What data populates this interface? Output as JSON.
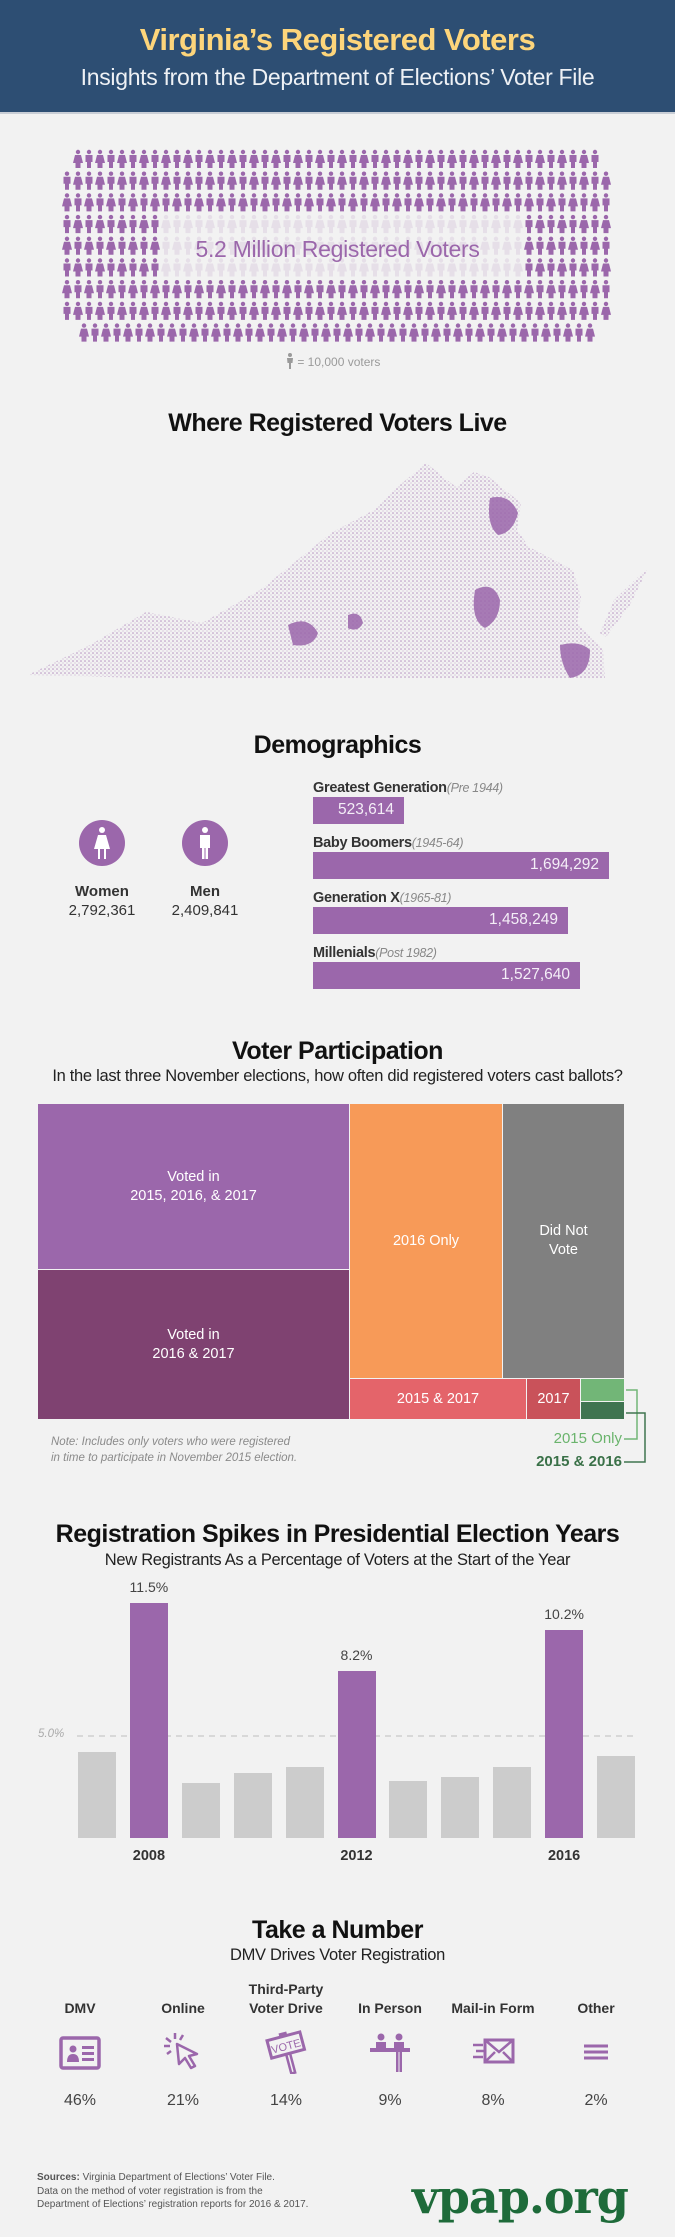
{
  "header": {
    "title": "Virginia’s Registered Voters",
    "subtitle": "Insights from the Department of Elections’ Voter File"
  },
  "pictogram": {
    "headline": "5.2 Million Registered Voters",
    "legend": "= 10,000 voters",
    "icon": "person-icon",
    "color": "#9b67ab"
  },
  "map": {
    "title": "Where Registered Voters Live",
    "color": "#9b67ab"
  },
  "demographics": {
    "title": "Demographics",
    "gender": [
      {
        "label": "Women",
        "value": "2,792,361",
        "icon": "female-icon"
      },
      {
        "label": "Men",
        "value": "2,409,841",
        "icon": "male-icon"
      }
    ]
  },
  "participation": {
    "title": "Voter Participation",
    "subtitle": "In the last three November elections, how often did registered voters cast ballots?",
    "note_line1": "Note: Includes only voters who were registered",
    "note_line2": "in time to participate in November 2015 election.",
    "callout_2015_only": "2015 Only",
    "callout_2015_2016": "2015 & 2016"
  },
  "spikes": {
    "title": "Registration Spikes in Presidential Election Years",
    "subtitle": "New Registrants As a Percentage of Voters at the Start of the Year",
    "ref_label": "5.0%"
  },
  "take_a_number": {
    "title": "Take a Number",
    "subtitle": "DMV Drives Voter Registration",
    "items": [
      {
        "label1": "",
        "label2": "DMV",
        "pct": "46%",
        "icon": "id-card-icon"
      },
      {
        "label1": "",
        "label2": "Online",
        "pct": "21%",
        "icon": "cursor-click-icon"
      },
      {
        "label1": "Third-Party",
        "label2": "Voter Drive",
        "pct": "14%",
        "icon": "vote-sign-icon"
      },
      {
        "label1": "",
        "label2": "In Person",
        "pct": "9%",
        "icon": "in-person-desk-icon"
      },
      {
        "label1": "",
        "label2": "Mail-in Form",
        "pct": "8%",
        "icon": "envelope-icon"
      },
      {
        "label1": "",
        "label2": "Other",
        "pct": "2%",
        "icon": "menu-lines-icon"
      }
    ],
    "vote_sign_text": "VOTE"
  },
  "footer": {
    "sources_label": "Sources:",
    "sources_line1": " Virginia Department of Elections’ Voter File.",
    "sources_line2": "Data on the method of voter registration is from the",
    "sources_line3": "Department of Elections’ registration reports for 2016 & 2017.",
    "logo": "vpap.org",
    "logo_color": "#1e6b3a"
  },
  "chart_data": [
    {
      "type": "bar",
      "orientation": "horizontal",
      "categories": [
        "Greatest Generation",
        "Baby Boomers",
        "Generation X",
        "Millenials"
      ],
      "category_notes": [
        "(Pre 1944)",
        "(1945-64)",
        "(1965-81)",
        "(Post 1982)"
      ],
      "values": [
        523614,
        1694292,
        1458249,
        1527640
      ],
      "value_labels": [
        "523,614",
        "1,694,292",
        "1,458,249",
        "1,527,640"
      ],
      "color": "#9b67ab"
    },
    {
      "type": "treemap",
      "unit": "approximate share of voters (%)",
      "cells": [
        {
          "label": "Voted in\n2015, 2016, & 2017",
          "line1": "Voted in",
          "line2": "2015, 2016, & 2017",
          "value": 27.9,
          "color": "#9b67ab"
        },
        {
          "label": "Voted in\n2016 & 2017",
          "line1": "Voted in",
          "line2": "2016 & 2017",
          "value": 25.2,
          "color": "#7f4271"
        },
        {
          "label": "2016 Only",
          "line1": "2016 Only",
          "line2": "",
          "value": 22.5,
          "color": "#f79a58"
        },
        {
          "label": "Did Not Vote",
          "line1": "Did Not",
          "line2": "Vote",
          "value": 17.9,
          "color": "#808080"
        },
        {
          "label": "2015 & 2017",
          "line1": "2015 & 2017",
          "line2": "",
          "value": 3.9,
          "color": "#e4646a"
        },
        {
          "label": "2017",
          "line1": "2017",
          "line2": "",
          "value": 1.2,
          "color": "#c9525a"
        },
        {
          "label": "2015 Only",
          "line1": "",
          "line2": "",
          "value": 0.5,
          "color": "#72b677"
        },
        {
          "label": "2015 & 2016",
          "line1": "",
          "line2": "",
          "value": 0.4,
          "color": "#3f7450"
        }
      ]
    },
    {
      "type": "bar",
      "x": [
        2007,
        2008,
        2009,
        2010,
        2011,
        2012,
        2013,
        2014,
        2015,
        2016,
        2017
      ],
      "tick_labels": [
        "",
        "2008",
        "",
        "",
        "",
        "2012",
        "",
        "",
        "",
        "2016",
        ""
      ],
      "values": [
        4.2,
        11.5,
        2.7,
        3.2,
        3.5,
        8.2,
        2.8,
        3.0,
        3.5,
        10.2,
        4.0
      ],
      "data_labels": [
        "",
        "11.5%",
        "",
        "",
        "",
        "8.2%",
        "",
        "",
        "",
        "10.2%",
        ""
      ],
      "highlight": [
        false,
        true,
        false,
        false,
        false,
        true,
        false,
        false,
        false,
        true,
        false
      ],
      "highlight_color": "#9b67ab",
      "base_color": "#cccccc",
      "reference_line": 5.0,
      "ylim": [
        0,
        12
      ],
      "grid": false
    }
  ]
}
